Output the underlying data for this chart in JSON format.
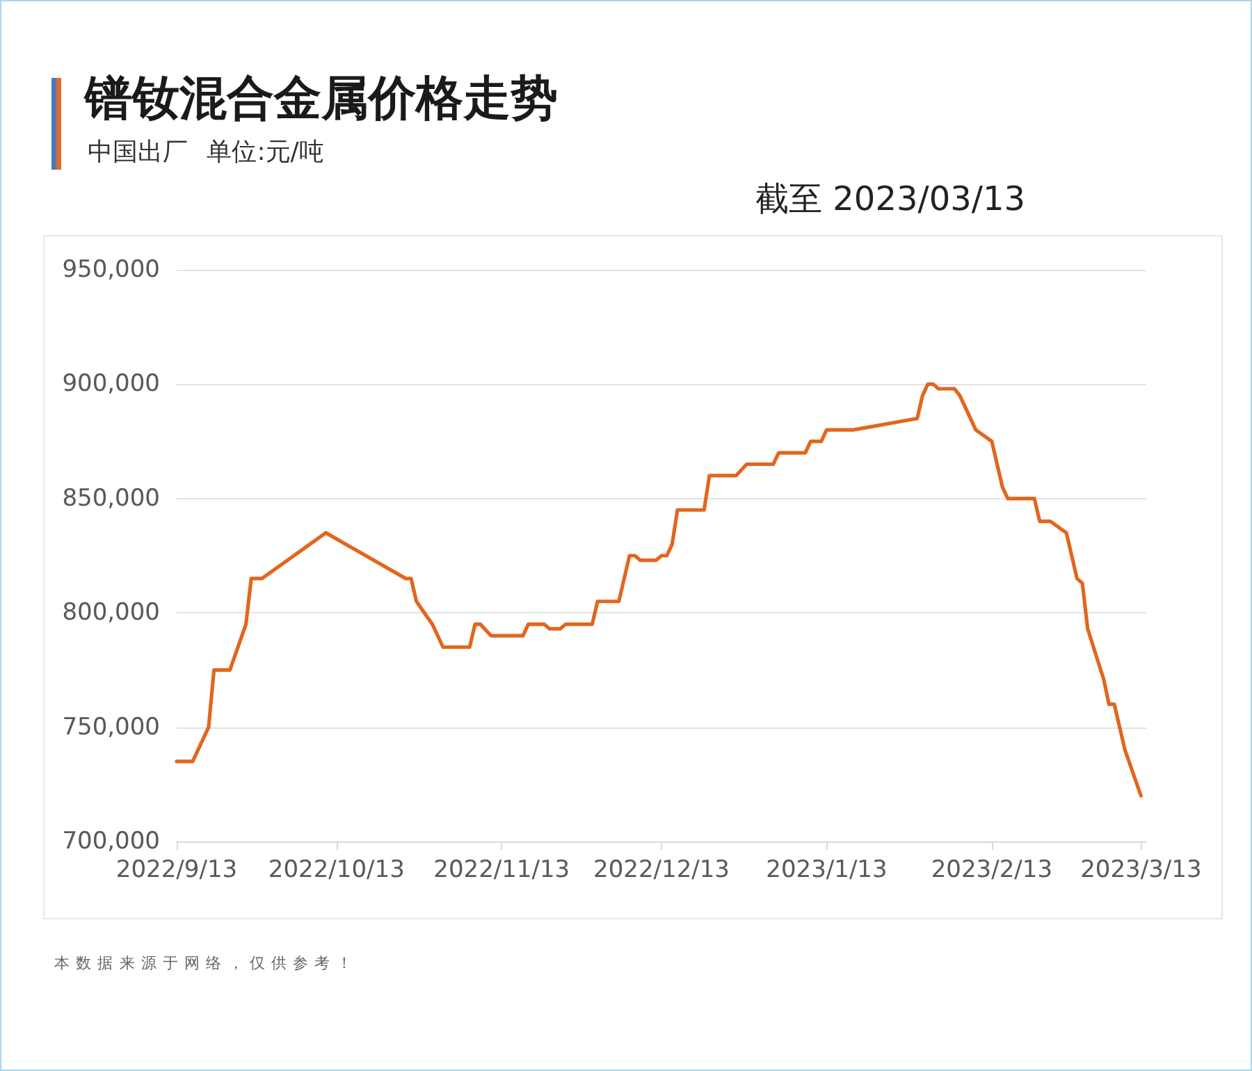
{
  "chart_data": {
    "type": "line",
    "title": "镨钕混合金属价格走势",
    "subtitle": "中国出厂 单位:元/吨",
    "annotations": [
      "截至 2023/03/13",
      "本数据来源于网络，仅供参考！"
    ],
    "x": [
      "2022-09-13",
      "2022-09-16",
      "2022-09-19",
      "2022-09-20",
      "2022-09-23",
      "2022-09-26",
      "2022-09-27",
      "2022-09-29",
      "2022-10-11",
      "2022-10-26",
      "2022-10-27",
      "2022-10-28",
      "2022-10-31",
      "2022-11-02",
      "2022-11-07",
      "2022-11-08",
      "2022-11-09",
      "2022-11-11",
      "2022-11-17",
      "2022-11-18",
      "2022-11-21",
      "2022-11-22",
      "2022-11-24",
      "2022-11-25",
      "2022-11-30",
      "2022-12-01",
      "2022-12-05",
      "2022-12-07",
      "2022-12-08",
      "2022-12-09",
      "2022-12-12",
      "2022-12-13",
      "2022-12-14",
      "2022-12-15",
      "2022-12-16",
      "2022-12-21",
      "2022-12-22",
      "2022-12-27",
      "2022-12-29",
      "2023-01-03",
      "2023-01-04",
      "2023-01-09",
      "2023-01-10",
      "2023-01-12",
      "2023-01-13",
      "2023-01-18",
      "2023-01-30",
      "2023-01-31",
      "2023-02-01",
      "2023-02-02",
      "2023-02-03",
      "2023-02-06",
      "2023-02-07",
      "2023-02-10",
      "2023-02-13",
      "2023-02-15",
      "2023-02-16",
      "2023-02-21",
      "2023-02-22",
      "2023-02-24",
      "2023-02-27",
      "2023-03-01",
      "2023-03-02",
      "2023-03-03",
      "2023-03-06",
      "2023-03-07",
      "2023-03-08",
      "2023-03-10",
      "2023-03-13"
    ],
    "series": [
      {
        "color": "#e2661e",
        "values": [
          735000,
          735000,
          750000,
          775000,
          775000,
          795000,
          815000,
          815000,
          835000,
          815000,
          815000,
          805000,
          795000,
          785000,
          785000,
          795000,
          795000,
          790000,
          790000,
          795000,
          795000,
          793000,
          793000,
          795000,
          795000,
          805000,
          805000,
          825000,
          825000,
          823000,
          823000,
          825000,
          825000,
          830000,
          845000,
          845000,
          860000,
          860000,
          865000,
          865000,
          870000,
          870000,
          875000,
          875000,
          880000,
          880000,
          885000,
          895000,
          900000,
          900000,
          898000,
          898000,
          895000,
          880000,
          875000,
          855000,
          850000,
          850000,
          840000,
          840000,
          835000,
          815000,
          813000,
          793000,
          771000,
          760000,
          760000,
          740000,
          720000
        ]
      }
    ],
    "xlim": [
      "2022-09-13",
      "2023-03-14"
    ],
    "xticks": [
      {
        "value": "2022-09-13",
        "label": "2022/9/13"
      },
      {
        "value": "2022-10-13",
        "label": "2022/10/13"
      },
      {
        "value": "2022-11-13",
        "label": "2022/11/13"
      },
      {
        "value": "2022-12-13",
        "label": "2022/12/13"
      },
      {
        "value": "2023-01-13",
        "label": "2023/1/13"
      },
      {
        "value": "2023-02-13",
        "label": "2023/2/13"
      },
      {
        "value": "2023-03-13",
        "label": "2023/3/13"
      }
    ],
    "ylim": [
      700000,
      950000
    ],
    "yticks": [
      {
        "value": 700000,
        "label": "700,000"
      },
      {
        "value": 750000,
        "label": "750,000"
      },
      {
        "value": 800000,
        "label": "800,000"
      },
      {
        "value": 850000,
        "label": "850,000"
      },
      {
        "value": 900000,
        "label": "900,000"
      },
      {
        "value": 950000,
        "label": "950,000"
      }
    ],
    "grid": "y",
    "line_style": "solid"
  }
}
